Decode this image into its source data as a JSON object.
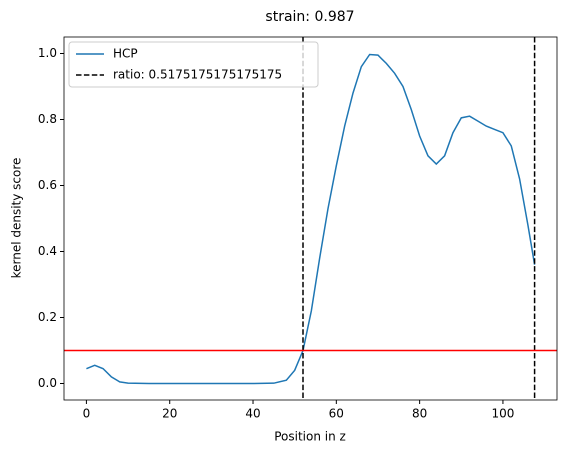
{
  "chart_data": {
    "type": "line",
    "title": "strain: 0.987",
    "xlabel": "Position in z",
    "ylabel": "kernel density score",
    "x": [
      0,
      2,
      4,
      6,
      8,
      10,
      15,
      20,
      30,
      40,
      45,
      48,
      50,
      52,
      54,
      56,
      58,
      60,
      62,
      64,
      66,
      68,
      70,
      72,
      74,
      76,
      78,
      80,
      82,
      84,
      86,
      88,
      90,
      92,
      94,
      96,
      98,
      100,
      102,
      104,
      106,
      107.6
    ],
    "series": [
      {
        "name": "HCP",
        "color": "#1f77b4",
        "values": [
          0.045,
          0.055,
          0.045,
          0.02,
          0.005,
          0.001,
          0,
          0,
          0,
          0,
          0.001,
          0.01,
          0.04,
          0.1,
          0.22,
          0.38,
          0.53,
          0.66,
          0.78,
          0.88,
          0.96,
          0.997,
          0.995,
          0.97,
          0.94,
          0.9,
          0.83,
          0.75,
          0.69,
          0.665,
          0.69,
          0.76,
          0.805,
          0.81,
          0.795,
          0.78,
          0.77,
          0.76,
          0.72,
          0.62,
          0.48,
          0.36
        ]
      }
    ],
    "vlines": {
      "name": "ratio: 0.5175175175175175",
      "color": "#000000",
      "values": [
        52,
        107.6
      ]
    },
    "hline": {
      "value": 0.1,
      "color": "#ff0000"
    },
    "xlim": [
      -5.38,
      112.98
    ],
    "ylim": [
      -0.05,
      1.05
    ],
    "xticks": [
      0,
      20,
      40,
      60,
      80,
      100
    ],
    "yticks": [
      {
        "value": 0,
        "label": "0.0"
      },
      0.2,
      0.4,
      0.6,
      0.8,
      {
        "value": 1,
        "label": "1.0"
      }
    ],
    "legend": "upper left"
  }
}
